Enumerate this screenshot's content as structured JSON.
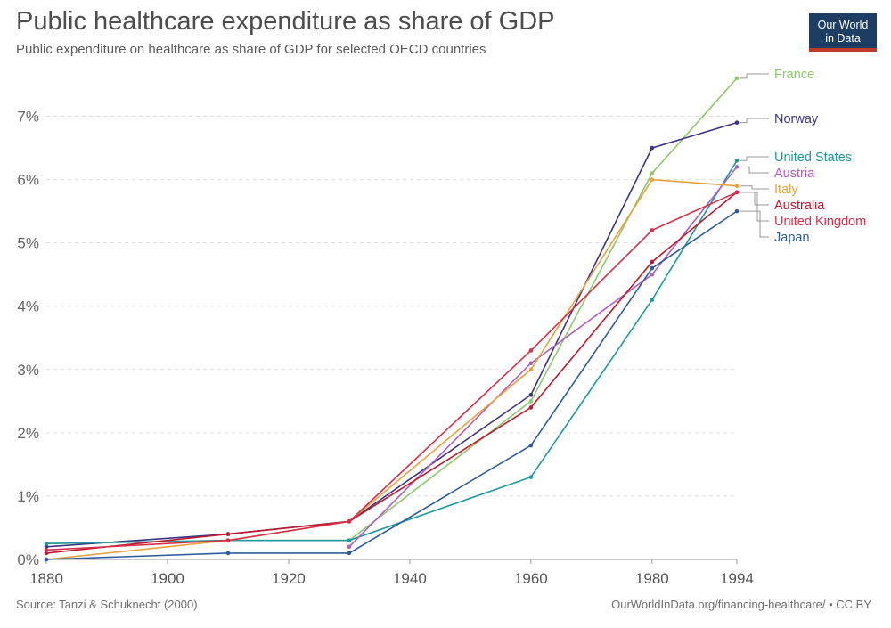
{
  "title": "Public healthcare expenditure as share of GDP",
  "subtitle": "Public expenditure on healthcare as share of GDP for selected OECD countries",
  "logo": {
    "line1": "Our World",
    "line2": "in Data"
  },
  "footer": {
    "source": "Source: Tanzi & Schuknecht (2000)",
    "link": "OurWorldInData.org/financing-healthcare/ • CC BY"
  },
  "chart_data": {
    "type": "line",
    "x_ticks": [
      1880,
      1900,
      1920,
      1940,
      1960,
      1980,
      1994
    ],
    "y_ticks": [
      0,
      1,
      2,
      3,
      4,
      5,
      6,
      7
    ],
    "y_tick_labels": [
      "0%",
      "1%",
      "2%",
      "3%",
      "4%",
      "5%",
      "6%",
      "7%"
    ],
    "xlim": [
      1880,
      1994
    ],
    "ylim": [
      0,
      7.5
    ],
    "grid": "horizontal dashed",
    "legend": "right, labels at line ends",
    "series": [
      {
        "name": "France",
        "color": "#8dc96b",
        "points": [
          [
            1880,
            0.25
          ],
          [
            1910,
            0.3
          ],
          [
            1930,
            0.3
          ],
          [
            1960,
            2.5
          ],
          [
            1980,
            6.1
          ],
          [
            1994,
            7.6
          ]
        ]
      },
      {
        "name": "Norway",
        "color": "#3c3481",
        "points": [
          [
            1880,
            0.2
          ],
          [
            1910,
            0.4
          ],
          [
            1930,
            0.6
          ],
          [
            1960,
            2.6
          ],
          [
            1980,
            6.5
          ],
          [
            1994,
            6.9
          ]
        ]
      },
      {
        "name": "United States",
        "color": "#1e9a9d",
        "points": [
          [
            1880,
            0.25
          ],
          [
            1910,
            0.3
          ],
          [
            1930,
            0.3
          ],
          [
            1960,
            1.3
          ],
          [
            1980,
            4.1
          ],
          [
            1994,
            6.3
          ]
        ]
      },
      {
        "name": "Austria",
        "color": "#b15ec1",
        "points": [
          [
            1930,
            0.2
          ],
          [
            1960,
            3.1
          ],
          [
            1980,
            4.5
          ],
          [
            1994,
            6.2
          ]
        ]
      },
      {
        "name": "Italy",
        "color": "#e9a23b",
        "points": [
          [
            1880,
            0.0
          ],
          [
            1910,
            0.3
          ],
          [
            1930,
            0.6
          ],
          [
            1960,
            3.0
          ],
          [
            1980,
            6.0
          ],
          [
            1994,
            5.9
          ]
        ]
      },
      {
        "name": "Australia",
        "color": "#bd1a2e",
        "points": [
          [
            1880,
            0.1
          ],
          [
            1910,
            0.4
          ],
          [
            1930,
            0.6
          ],
          [
            1960,
            2.4
          ],
          [
            1980,
            4.7
          ],
          [
            1994,
            5.8
          ]
        ]
      },
      {
        "name": "United Kingdom",
        "color": "#d6304b",
        "points": [
          [
            1880,
            0.15
          ],
          [
            1910,
            0.3
          ],
          [
            1930,
            0.6
          ],
          [
            1960,
            3.3
          ],
          [
            1980,
            5.2
          ],
          [
            1994,
            5.8
          ]
        ]
      },
      {
        "name": "Japan",
        "color": "#2e5c9c",
        "points": [
          [
            1880,
            0.0
          ],
          [
            1910,
            0.1
          ],
          [
            1930,
            0.1
          ],
          [
            1960,
            1.8
          ],
          [
            1980,
            4.6
          ],
          [
            1994,
            5.5
          ]
        ]
      }
    ]
  }
}
